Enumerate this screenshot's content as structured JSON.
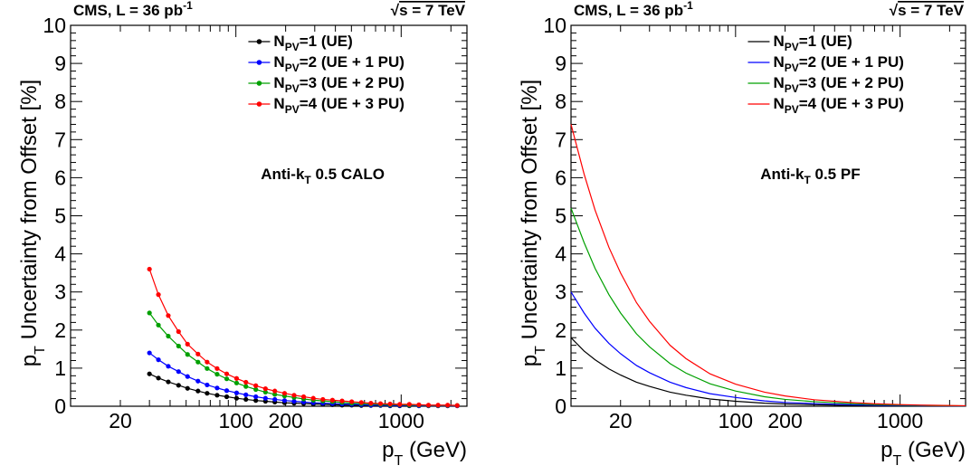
{
  "chart_data": [
    {
      "type": "line",
      "header_left": "CMS, L = 36 pb",
      "header_left_sup": "-1",
      "header_right_sqrt": "√",
      "header_right": "s = 7 TeV",
      "annotation": "Anti-k",
      "annotation_sub": "T",
      "annotation_tail": " 0.5 CALO",
      "ylabel": "p",
      "ylabel_sub": "T",
      "ylabel_tail": " Uncertainty from Offset [%]",
      "xlabel": "p",
      "xlabel_sub": "T",
      "xlabel_tail": " (GeV)",
      "x_scale": "log",
      "xlim": [
        10,
        2500
      ],
      "ylim": [
        0,
        10
      ],
      "markers": true,
      "y_ticks": [
        "0",
        "1",
        "2",
        "3",
        "4",
        "5",
        "6",
        "7",
        "8",
        "9",
        "10"
      ],
      "x_ticks": [
        {
          "value": 20,
          "label": "20"
        },
        {
          "value": 100,
          "label": "100"
        },
        {
          "value": 200,
          "label": "200"
        },
        {
          "value": 1000,
          "label": "1000"
        }
      ],
      "legend_position": "top-right",
      "series": [
        {
          "name": "N",
          "sub": "PV",
          "tail": "=1 (UE)",
          "color": "#000000",
          "x": [
            30,
            34,
            39,
            45,
            51,
            59,
            67,
            77,
            88,
            101,
            115,
            132,
            151,
            172,
            197,
            225,
            257,
            294,
            336,
            384,
            439,
            502,
            574,
            656,
            750,
            857,
            980,
            1120,
            1280,
            1463,
            1672,
            1911,
            2184
          ],
          "y": [
            0.85,
            0.74,
            0.64,
            0.55,
            0.47,
            0.4,
            0.34,
            0.29,
            0.25,
            0.21,
            0.18,
            0.15,
            0.13,
            0.11,
            0.09,
            0.08,
            0.07,
            0.06,
            0.05,
            0.04,
            0.03,
            0.03,
            0.02,
            0.02,
            0.02,
            0.01,
            0.01,
            0.01,
            0.01,
            0.01,
            0.01,
            0.01,
            0.01
          ]
        },
        {
          "name": "N",
          "sub": "PV",
          "tail": "=2 (UE + 1 PU)",
          "color": "#0000ff",
          "x": [
            30,
            34,
            39,
            45,
            51,
            59,
            67,
            77,
            88,
            101,
            115,
            132,
            151,
            172,
            197,
            225,
            257,
            294,
            336,
            384,
            439,
            502,
            574,
            656,
            750,
            857,
            980,
            1120,
            1280,
            1463,
            1672,
            1911,
            2184
          ],
          "y": [
            1.4,
            1.22,
            1.05,
            0.91,
            0.78,
            0.66,
            0.56,
            0.48,
            0.41,
            0.35,
            0.3,
            0.25,
            0.21,
            0.18,
            0.15,
            0.13,
            0.11,
            0.09,
            0.08,
            0.07,
            0.06,
            0.05,
            0.04,
            0.03,
            0.03,
            0.02,
            0.02,
            0.02,
            0.01,
            0.01,
            0.01,
            0.01,
            0.01
          ]
        },
        {
          "name": "N",
          "sub": "PV",
          "tail": "=3 (UE + 2 PU)",
          "color": "#00a000",
          "x": [
            30,
            34,
            39,
            45,
            51,
            59,
            67,
            77,
            88,
            101,
            115,
            132,
            151,
            172,
            197,
            225,
            257,
            294,
            336,
            384,
            439,
            502,
            574,
            656,
            750,
            857,
            980,
            1120,
            1280,
            1463,
            1672,
            1911,
            2184
          ],
          "y": [
            2.45,
            2.13,
            1.84,
            1.58,
            1.36,
            1.16,
            0.99,
            0.84,
            0.72,
            0.61,
            0.52,
            0.44,
            0.37,
            0.31,
            0.27,
            0.23,
            0.19,
            0.16,
            0.14,
            0.12,
            0.1,
            0.08,
            0.07,
            0.06,
            0.05,
            0.04,
            0.04,
            0.03,
            0.03,
            0.02,
            0.02,
            0.02,
            0.02
          ]
        },
        {
          "name": "N",
          "sub": "PV",
          "tail": "=4 (UE + 3 PU)",
          "color": "#ff0000",
          "x": [
            30,
            34,
            39,
            45,
            51,
            59,
            67,
            77,
            88,
            101,
            115,
            132,
            151,
            172,
            197,
            225,
            257,
            294,
            336,
            384,
            439,
            502,
            574,
            656,
            750,
            857,
            980,
            1120,
            1280,
            1463,
            1672,
            1911,
            2184
          ],
          "y": [
            3.6,
            2.93,
            2.38,
            1.96,
            1.63,
            1.37,
            1.16,
            0.99,
            0.85,
            0.73,
            0.63,
            0.54,
            0.46,
            0.4,
            0.34,
            0.29,
            0.25,
            0.21,
            0.18,
            0.16,
            0.14,
            0.12,
            0.1,
            0.08,
            0.07,
            0.06,
            0.05,
            0.05,
            0.04,
            0.03,
            0.03,
            0.03,
            0.02
          ]
        }
      ]
    },
    {
      "type": "line",
      "header_left": "CMS, L = 36 pb",
      "header_left_sup": "-1",
      "header_right_sqrt": "√",
      "header_right": "s = 7 TeV",
      "annotation": "Anti-k",
      "annotation_sub": "T",
      "annotation_tail": " 0.5 PF",
      "ylabel": "p",
      "ylabel_sub": "T",
      "ylabel_tail": " Uncertainty from Offset [%]",
      "xlabel": "p",
      "xlabel_sub": "T",
      "xlabel_tail": " (GeV)",
      "x_scale": "log",
      "xlim": [
        10,
        2500
      ],
      "ylim": [
        0,
        10
      ],
      "markers": false,
      "y_ticks": [
        "0",
        "1",
        "2",
        "3",
        "4",
        "5",
        "6",
        "7",
        "8",
        "9",
        "10"
      ],
      "x_ticks": [
        {
          "value": 20,
          "label": "20"
        },
        {
          "value": 100,
          "label": "100"
        },
        {
          "value": 200,
          "label": "200"
        },
        {
          "value": 1000,
          "label": "1000"
        }
      ],
      "legend_position": "top-right",
      "series": [
        {
          "name": "N",
          "sub": "PV",
          "tail": "=1 (UE)",
          "color": "#000000",
          "x": [
            10,
            12,
            14,
            17,
            20,
            25,
            30,
            40,
            50,
            70,
            100,
            150,
            200,
            300,
            500,
            700,
            1000,
            1500,
            2500
          ],
          "y": [
            1.8,
            1.45,
            1.22,
            0.98,
            0.82,
            0.63,
            0.52,
            0.37,
            0.29,
            0.19,
            0.13,
            0.08,
            0.06,
            0.04,
            0.02,
            0.015,
            0.01,
            0.006,
            0.003
          ]
        },
        {
          "name": "N",
          "sub": "PV",
          "tail": "=2 (UE + 1 PU)",
          "color": "#0000ff",
          "x": [
            10,
            12,
            14,
            17,
            20,
            25,
            30,
            40,
            50,
            70,
            100,
            150,
            200,
            300,
            500,
            700,
            1000,
            1500,
            2500
          ],
          "y": [
            3.0,
            2.45,
            2.05,
            1.65,
            1.38,
            1.07,
            0.88,
            0.63,
            0.49,
            0.33,
            0.23,
            0.14,
            0.1,
            0.07,
            0.04,
            0.025,
            0.017,
            0.01,
            0.005
          ]
        },
        {
          "name": "N",
          "sub": "PV",
          "tail": "=3 (UE + 2 PU)",
          "color": "#00a000",
          "x": [
            10,
            12,
            14,
            17,
            20,
            25,
            30,
            40,
            50,
            70,
            100,
            150,
            200,
            300,
            500,
            700,
            1000,
            1500,
            2500
          ],
          "y": [
            5.2,
            4.3,
            3.62,
            2.93,
            2.45,
            1.9,
            1.56,
            1.12,
            0.87,
            0.59,
            0.4,
            0.25,
            0.18,
            0.12,
            0.07,
            0.045,
            0.03,
            0.018,
            0.009
          ]
        },
        {
          "name": "N",
          "sub": "PV",
          "tail": "=4 (UE + 3 PU)",
          "color": "#ff0000",
          "x": [
            10,
            12,
            14,
            17,
            20,
            25,
            30,
            40,
            50,
            70,
            100,
            150,
            200,
            300,
            500,
            700,
            1000,
            1500,
            2500
          ],
          "y": [
            7.4,
            6.1,
            5.15,
            4.17,
            3.5,
            2.72,
            2.23,
            1.6,
            1.25,
            0.85,
            0.58,
            0.37,
            0.27,
            0.17,
            0.1,
            0.065,
            0.043,
            0.026,
            0.013
          ]
        }
      ]
    }
  ]
}
